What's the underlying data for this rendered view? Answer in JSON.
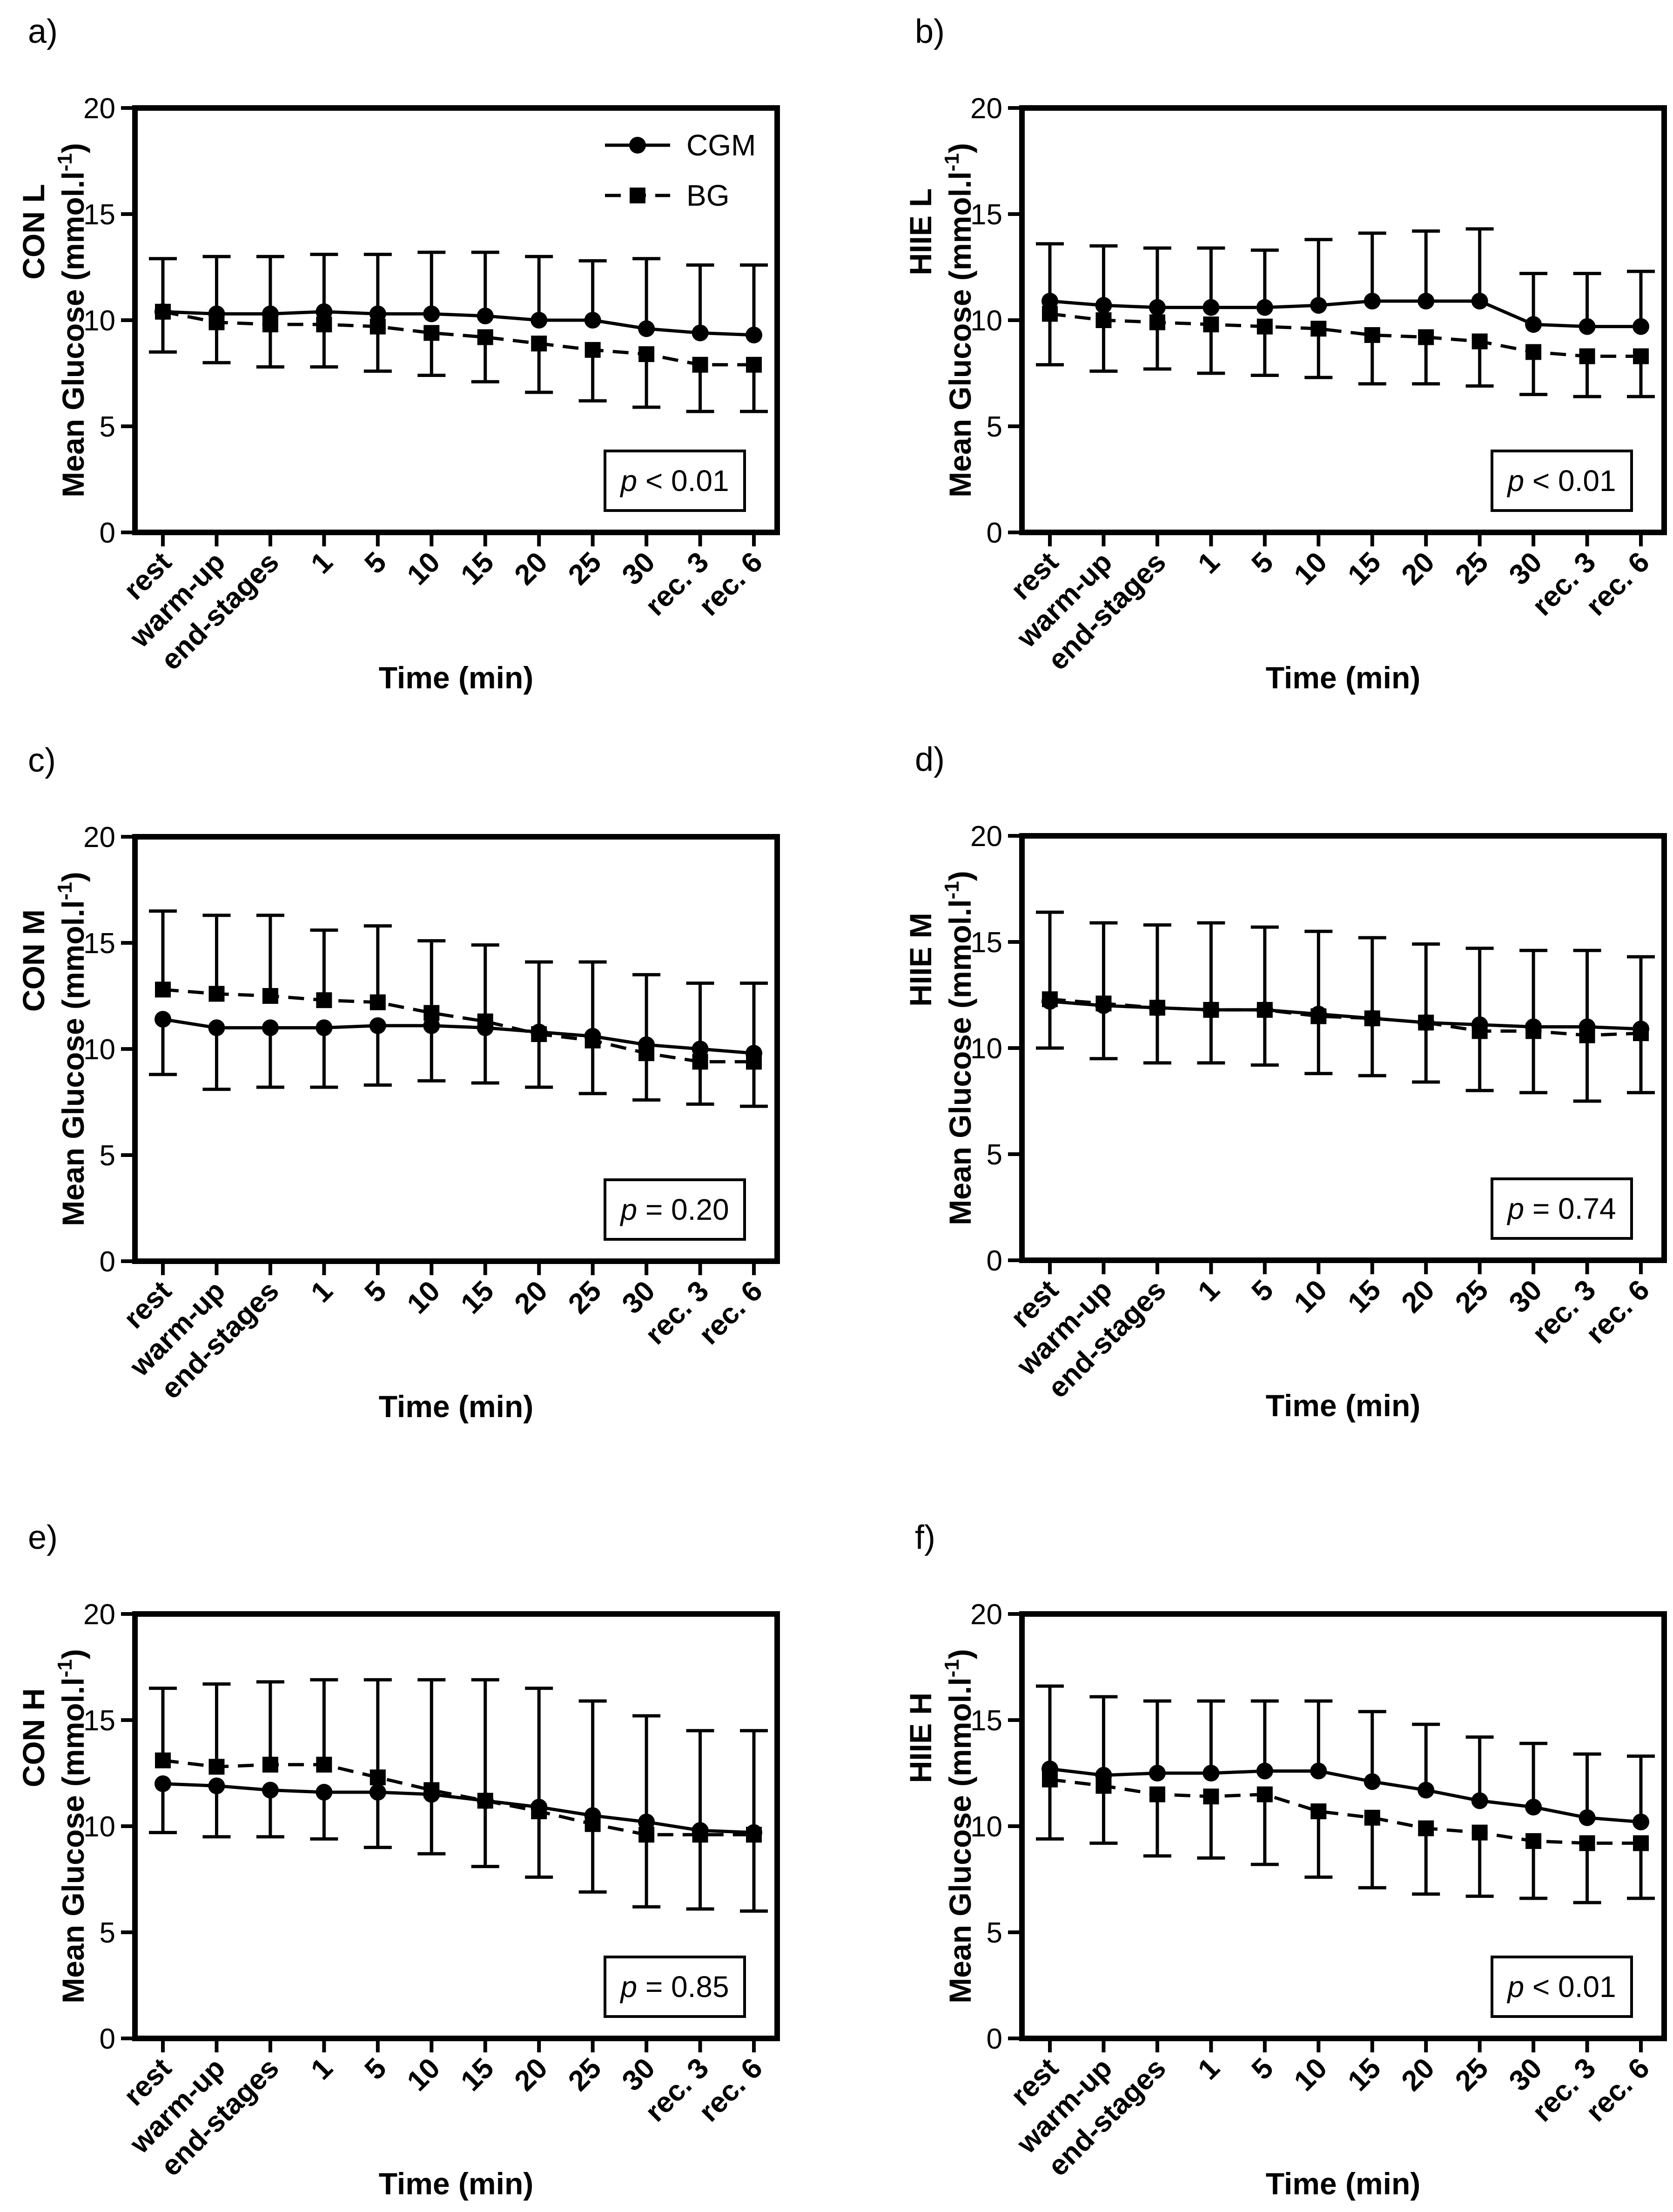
{
  "figure": {
    "x_categories": [
      "rest",
      "warm-up",
      "end-stages",
      "1",
      "5",
      "10",
      "15",
      "20",
      "25",
      "30",
      "rec. 3",
      "rec. 6"
    ],
    "xlabel": "Time (min)",
    "ylabel": "Mean Glucose (mmol.l",
    "ylabel_sup": "-1",
    "ylabel_close": ")",
    "yticks": [
      "0",
      "5",
      "10",
      "15",
      "20"
    ],
    "legend": {
      "cgm": "CGM",
      "bg": "BG"
    },
    "colors": {
      "line": "#000000",
      "frame": "#000000"
    }
  },
  "chart_data": [
    {
      "panel": "a)",
      "type": "line",
      "group": "CON L",
      "categories": [
        "rest",
        "warm-up",
        "end-stages",
        "1",
        "5",
        "10",
        "15",
        "20",
        "25",
        "30",
        "rec. 3",
        "rec. 6"
      ],
      "ylim": [
        0,
        20
      ],
      "xlabel": "Time (min)",
      "p_value": {
        "italic": "p",
        "text": " < 0.01"
      },
      "series": [
        {
          "name": "CGM",
          "marker": "circle",
          "style": "solid",
          "values": [
            10.4,
            10.3,
            10.3,
            10.4,
            10.3,
            10.3,
            10.2,
            10.0,
            10.0,
            9.6,
            9.4,
            9.3
          ],
          "err_up": [
            12.9,
            13.0,
            13.0,
            13.1,
            13.1,
            13.2,
            13.2,
            13.0,
            12.8,
            12.9,
            12.6,
            12.6
          ]
        },
        {
          "name": "BG",
          "marker": "square",
          "style": "dashed",
          "values": [
            10.4,
            9.9,
            9.8,
            9.8,
            9.7,
            9.4,
            9.2,
            8.9,
            8.6,
            8.4,
            7.9,
            7.9
          ],
          "err_low": [
            8.5,
            8.0,
            7.8,
            7.8,
            7.6,
            7.4,
            7.1,
            6.6,
            6.2,
            5.9,
            5.7,
            5.7
          ]
        }
      ]
    },
    {
      "panel": "b)",
      "type": "line",
      "group": "HIIE L",
      "categories": [
        "rest",
        "warm-up",
        "end-stages",
        "1",
        "5",
        "10",
        "15",
        "20",
        "25",
        "30",
        "rec. 3",
        "rec. 6"
      ],
      "ylim": [
        0,
        20
      ],
      "xlabel": "Time (min)",
      "p_value": {
        "italic": "p",
        "text": " < 0.01"
      },
      "series": [
        {
          "name": "CGM",
          "marker": "circle",
          "style": "solid",
          "values": [
            10.9,
            10.7,
            10.6,
            10.6,
            10.6,
            10.7,
            10.9,
            10.9,
            10.9,
            9.8,
            9.7,
            9.7
          ],
          "err_up": [
            13.6,
            13.5,
            13.4,
            13.4,
            13.3,
            13.8,
            14.1,
            14.2,
            14.3,
            12.2,
            12.2,
            12.3
          ]
        },
        {
          "name": "BG",
          "marker": "square",
          "style": "dashed",
          "values": [
            10.3,
            10.0,
            9.9,
            9.8,
            9.7,
            9.6,
            9.3,
            9.2,
            9.0,
            8.5,
            8.3,
            8.3
          ],
          "err_low": [
            7.9,
            7.6,
            7.7,
            7.5,
            7.4,
            7.3,
            7.0,
            7.0,
            6.9,
            6.5,
            6.4,
            6.4
          ]
        }
      ]
    },
    {
      "panel": "c)",
      "type": "line",
      "group": "CON M",
      "categories": [
        "rest",
        "warm-up",
        "end-stages",
        "1",
        "5",
        "10",
        "15",
        "20",
        "25",
        "30",
        "rec. 3",
        "rec. 6"
      ],
      "ylim": [
        0,
        20
      ],
      "xlabel": "Time (min)",
      "p_value": {
        "italic": "p",
        "text": " = 0.20"
      },
      "series": [
        {
          "name": "CGM",
          "marker": "circle",
          "style": "solid",
          "values": [
            11.4,
            11.0,
            11.0,
            11.0,
            11.1,
            11.1,
            11.0,
            10.8,
            10.6,
            10.2,
            10.0,
            9.8
          ],
          "err_low": [
            8.8,
            8.1,
            8.2,
            8.2,
            8.3,
            8.5,
            8.4,
            8.2,
            7.9,
            7.6,
            7.4,
            7.3
          ]
        },
        {
          "name": "BG",
          "marker": "square",
          "style": "dashed",
          "values": [
            12.8,
            12.6,
            12.5,
            12.3,
            12.2,
            11.7,
            11.3,
            10.7,
            10.4,
            9.8,
            9.4,
            9.4
          ],
          "err_up": [
            16.5,
            16.3,
            16.3,
            15.6,
            15.8,
            15.1,
            14.9,
            14.1,
            14.1,
            13.5,
            13.1,
            13.1
          ]
        }
      ]
    },
    {
      "panel": "d)",
      "type": "line",
      "group": "HIIE M",
      "categories": [
        "rest",
        "warm-up",
        "end-stages",
        "1",
        "5",
        "10",
        "15",
        "20",
        "25",
        "30",
        "rec. 3",
        "rec. 6"
      ],
      "ylim": [
        0,
        20
      ],
      "xlabel": "Time (min)",
      "p_value": {
        "italic": "p",
        "text": " = 0.74"
      },
      "series": [
        {
          "name": "CGM",
          "marker": "circle",
          "style": "solid",
          "values": [
            12.2,
            12.0,
            11.9,
            11.8,
            11.8,
            11.6,
            11.4,
            11.2,
            11.1,
            11.0,
            11.0,
            10.9
          ],
          "err_up": [
            16.4,
            15.9,
            15.8,
            15.9,
            15.7,
            15.5,
            15.2,
            14.9,
            14.7,
            14.6,
            14.6,
            14.3
          ]
        },
        {
          "name": "BG",
          "marker": "square",
          "style": "dashed",
          "values": [
            12.3,
            12.1,
            11.9,
            11.8,
            11.8,
            11.5,
            11.4,
            11.2,
            10.8,
            10.8,
            10.6,
            10.7
          ],
          "err_low": [
            10.0,
            9.5,
            9.3,
            9.3,
            9.2,
            8.8,
            8.7,
            8.4,
            8.0,
            7.9,
            7.5,
            7.9
          ]
        }
      ]
    },
    {
      "panel": "e)",
      "type": "line",
      "group": "CON H",
      "categories": [
        "rest",
        "warm-up",
        "end-stages",
        "1",
        "5",
        "10",
        "15",
        "20",
        "25",
        "30",
        "rec. 3",
        "rec. 6"
      ],
      "ylim": [
        0,
        20
      ],
      "xlabel": "Time (min)",
      "p_value": {
        "italic": "p",
        "text": " = 0.85"
      },
      "series": [
        {
          "name": "CGM",
          "marker": "circle",
          "style": "solid",
          "values": [
            12.0,
            11.9,
            11.7,
            11.6,
            11.6,
            11.5,
            11.2,
            10.9,
            10.5,
            10.2,
            9.8,
            9.7
          ],
          "err_low": [
            9.7,
            9.5,
            9.5,
            9.4,
            9.0,
            8.7,
            8.1,
            7.6,
            6.9,
            6.2,
            6.1,
            6.0
          ]
        },
        {
          "name": "BG",
          "marker": "square",
          "style": "dashed",
          "values": [
            13.1,
            12.8,
            12.9,
            12.9,
            12.3,
            11.7,
            11.2,
            10.7,
            10.1,
            9.6,
            9.6,
            9.6
          ],
          "err_up": [
            16.5,
            16.7,
            16.8,
            16.9,
            16.9,
            16.9,
            16.9,
            16.5,
            15.9,
            15.2,
            14.5,
            14.5
          ]
        }
      ]
    },
    {
      "panel": "f)",
      "type": "line",
      "group": "HIIE H",
      "categories": [
        "rest",
        "warm-up",
        "end-stages",
        "1",
        "5",
        "10",
        "15",
        "20",
        "25",
        "30",
        "rec. 3",
        "rec. 6"
      ],
      "ylim": [
        0,
        20
      ],
      "xlabel": "Time (min)",
      "p_value": {
        "italic": "p",
        "text": " < 0.01"
      },
      "series": [
        {
          "name": "CGM",
          "marker": "circle",
          "style": "solid",
          "values": [
            12.7,
            12.4,
            12.5,
            12.5,
            12.6,
            12.6,
            12.1,
            11.7,
            11.2,
            10.9,
            10.4,
            10.2
          ],
          "err_up": [
            16.6,
            16.1,
            15.9,
            15.9,
            15.9,
            15.9,
            15.4,
            14.8,
            14.2,
            13.9,
            13.4,
            13.3
          ]
        },
        {
          "name": "BG",
          "marker": "square",
          "style": "dashed",
          "values": [
            12.2,
            11.9,
            11.5,
            11.4,
            11.5,
            10.7,
            10.4,
            9.9,
            9.7,
            9.3,
            9.2,
            9.2
          ],
          "err_low": [
            9.4,
            9.2,
            8.6,
            8.5,
            8.2,
            7.6,
            7.1,
            6.8,
            6.7,
            6.6,
            6.4,
            6.6
          ]
        }
      ]
    }
  ]
}
